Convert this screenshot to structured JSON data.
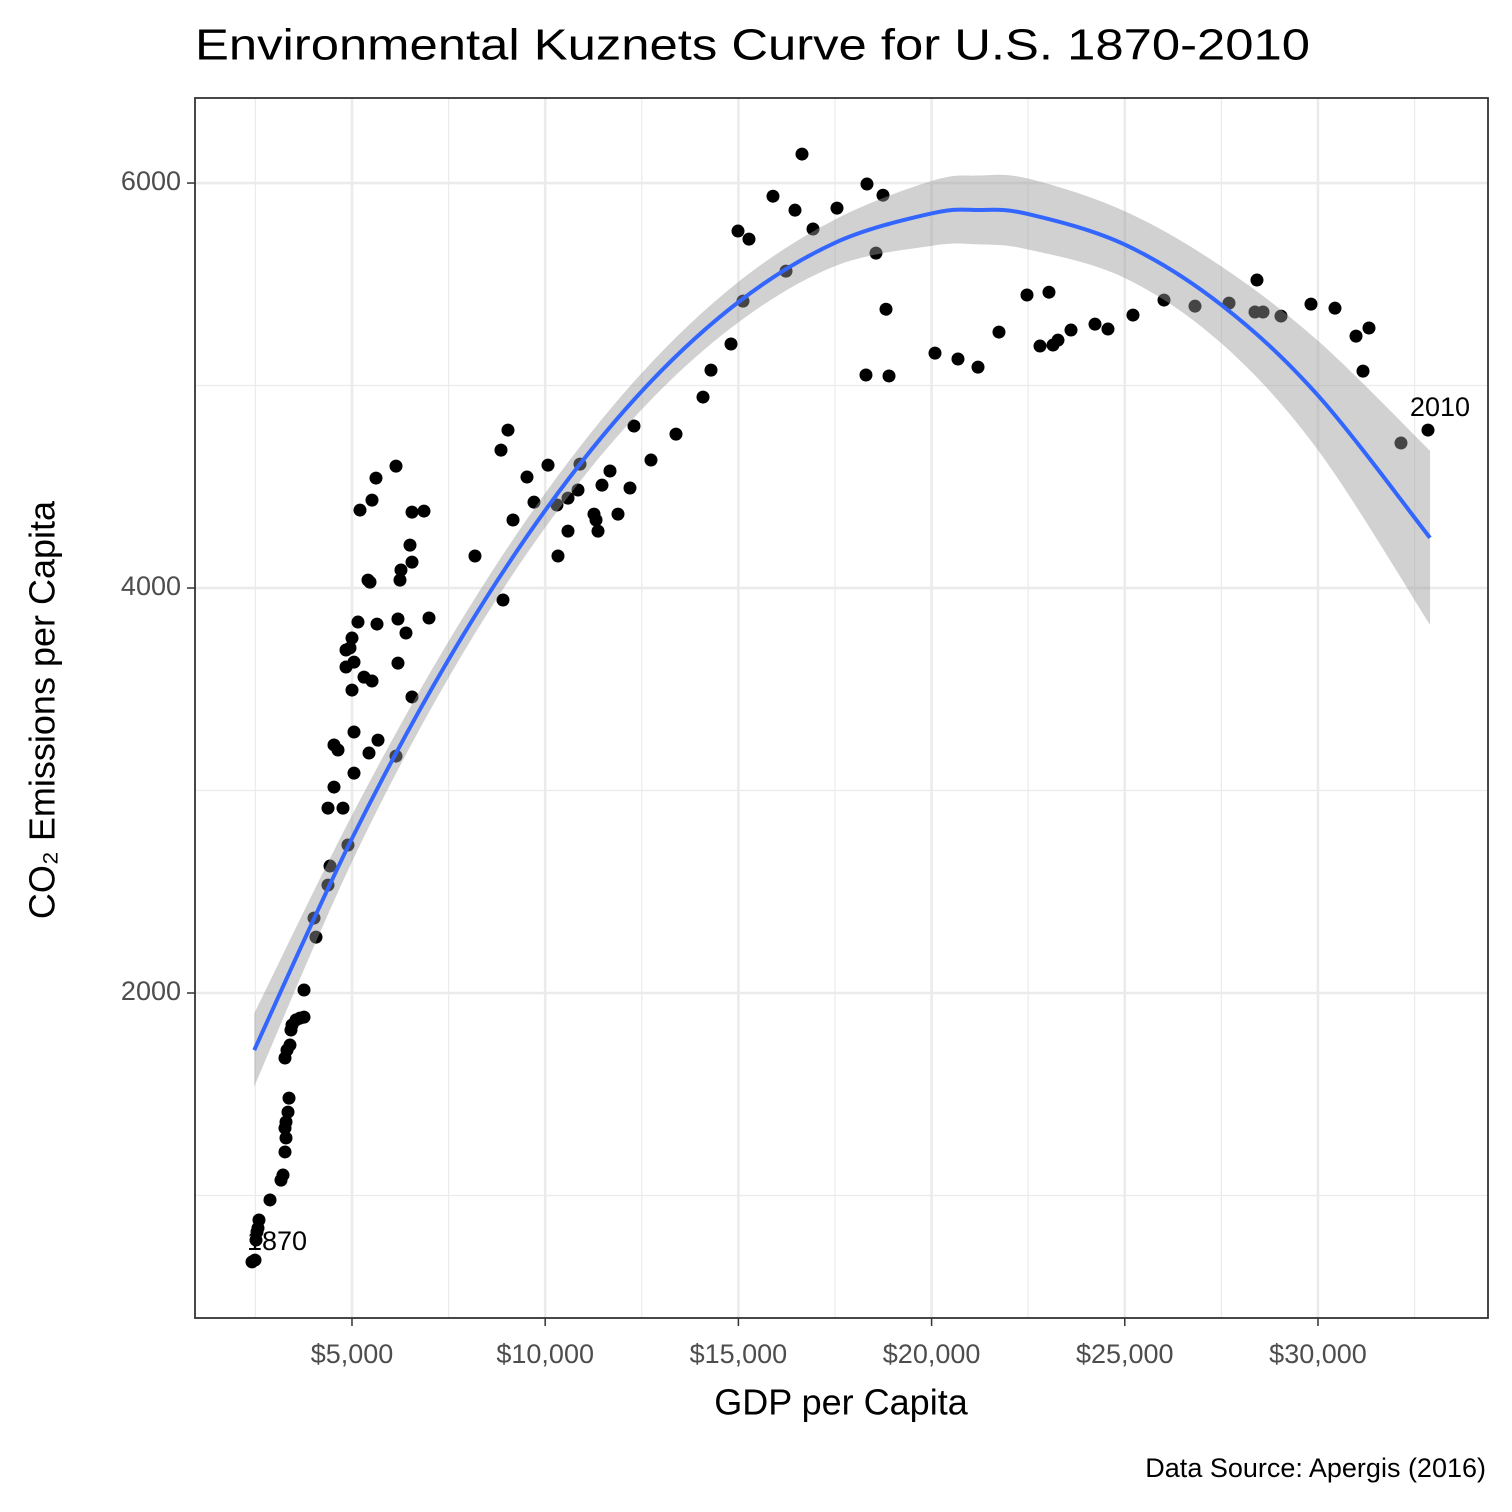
{
  "chart_data": {
    "type": "scatter",
    "title": "Environmental Kuznets Curve for U.S. 1870-2010",
    "x_label": "GDP per Capita",
    "y_label": "CO₂ Emissions per Capita",
    "caption": "Data Source: Apergis (2016)",
    "xlim": [
      937,
      34400
    ],
    "ylim": [
      395,
      6420
    ],
    "xticks": [
      {
        "value": 5000,
        "label": "$5,000"
      },
      {
        "value": 10000,
        "label": "$10,000"
      },
      {
        "value": 15000,
        "label": "$15,000"
      },
      {
        "value": 20000,
        "label": "$20,000"
      },
      {
        "value": 25000,
        "label": "$25,000"
      },
      {
        "value": 30000,
        "label": "$30,000"
      }
    ],
    "yticks": [
      2000,
      4000,
      6000
    ],
    "x_minor_grid": [
      2500,
      7500,
      12500,
      17500,
      22500,
      27500,
      32500
    ],
    "y_minor_grid": [
      1000,
      3000,
      5000
    ],
    "grid": true,
    "points": {
      "color": "#000000",
      "x": [
        2412,
        2490,
        2516,
        2541,
        2567,
        2593,
        2878,
        3163,
        3214,
        3266,
        3292,
        3266,
        3292,
        3344,
        3370,
        3266,
        3318,
        3395,
        3421,
        3447,
        3551,
        3654,
        3758,
        3758,
        4017,
        4068,
        4379,
        4431,
        4379,
        4534,
        4767,
        4896,
        4534,
        4638,
        5052,
        5440,
        5673,
        5052,
        5000,
        4948,
        4845,
        4845,
        5052,
        5000,
        5155,
        5311,
        5518,
        5414,
        5466,
        5207,
        5518,
        5621,
        5647,
        6139,
        6190,
        6190,
        6242,
        6268,
        6397,
        6553,
        6553,
        6501,
        6553,
        6139,
        6863,
        6993,
        8183,
        8908,
        8856,
        9037,
        9167,
        9529,
        9710,
        10073,
        10331,
        10305,
        10590,
        10590,
        10849,
        10901,
        11263,
        11315,
        11367,
        11470,
        11677,
        11884,
        12195,
        12298,
        12738,
        13385,
        14084,
        14291,
        14809,
        14990,
        15274,
        15119,
        16232,
        15895,
        16465,
        16646,
        16931,
        17552,
        18328,
        18561,
        18742,
        18302,
        18898,
        18820,
        20088,
        20683,
        21201,
        21744,
        22469,
        22806,
        23038,
        23142,
        23271,
        23608,
        24229,
        24565,
        25212,
        26015,
        26817,
        27697,
        28421,
        28370,
        28577,
        29043,
        29819,
        30440,
        30984,
        31320,
        31165,
        32148,
        32847
      ],
      "values": [
        672,
        681,
        780,
        820,
        839,
        879,
        978,
        1076,
        1101,
        1215,
        1284,
        1333,
        1363,
        1412,
        1481,
        1679,
        1718,
        1743,
        1817,
        1842,
        1867,
        1876,
        1881,
        2015,
        2370,
        2276,
        2533,
        2627,
        2913,
        3017,
        2913,
        2731,
        3225,
        3200,
        3086,
        3185,
        3249,
        3289,
        3496,
        3704,
        3610,
        3694,
        3634,
        3753,
        3832,
        3560,
        3541,
        4039,
        4029,
        4385,
        4434,
        4543,
        3822,
        3170,
        3629,
        3847,
        4039,
        4089,
        3778,
        3462,
        4128,
        4212,
        4375,
        4602,
        4380,
        3852,
        4158,
        3941,
        4681,
        4780,
        4336,
        4548,
        4424,
        4607,
        4158,
        4410,
        4444,
        4281,
        4484,
        4612,
        4365,
        4336,
        4281,
        4508,
        4578,
        4365,
        4494,
        4800,
        4632,
        4760,
        4943,
        5076,
        5205,
        5763,
        5723,
        5417,
        5565,
        5935,
        5866,
        6143,
        5773,
        5876,
        5995,
        5654,
        5940,
        5052,
        5047,
        5377,
        5160,
        5131,
        5091,
        5264,
        5447,
        5195,
        5461,
        5200,
        5224,
        5274,
        5303,
        5279,
        5348,
        5422,
        5392,
        5407,
        5521,
        5363,
        5363,
        5343,
        5402,
        5382,
        5244,
        5284,
        5071,
        4716,
        4780
      ]
    },
    "fit": {
      "color": "#3366ff",
      "band_color": "#999999",
      "x": [
        2470,
        5000,
        7500,
        10000,
        12500,
        15000,
        17500,
        20000,
        21200,
        22500,
        25000,
        27500,
        30000,
        32900
      ],
      "values": [
        1718,
        2763,
        3647,
        4383,
        4972,
        5412,
        5705,
        5850,
        5867,
        5847,
        5696,
        5398,
        4951,
        4248
      ],
      "lower": [
        1538,
        2648,
        3557,
        4298,
        4882,
        5312,
        5590,
        5690,
        5697,
        5672,
        5531,
        5208,
        4681,
        3818
      ],
      "upper": [
        1898,
        2878,
        3737,
        4468,
        5062,
        5512,
        5820,
        6010,
        6037,
        6022,
        5861,
        5588,
        5221,
        4678
      ]
    },
    "annotations": [
      {
        "text": "1870",
        "x": 3059,
        "y": 765
      },
      {
        "text": "2010",
        "x": 33157,
        "y": 4884
      }
    ]
  }
}
